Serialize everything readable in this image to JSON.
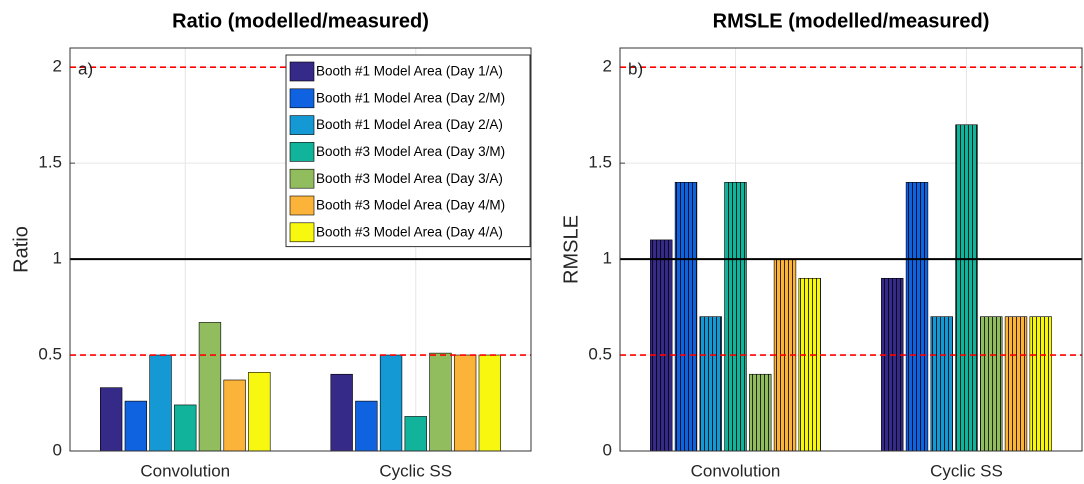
{
  "chart_data": [
    {
      "type": "bar",
      "title": "Ratio (modelled/measured)",
      "y_label": "Ratio",
      "annotation": "a)",
      "categories": [
        "Convolution",
        "Cyclic SS"
      ],
      "series": [
        {
          "name": "Booth #1 Model Area (Day 1/A)",
          "color": "#352a87",
          "values": [
            0.33,
            0.4
          ]
        },
        {
          "name": "Booth #1 Model Area (Day 2/M)",
          "color": "#0f62e0",
          "values": [
            0.26,
            0.26
          ]
        },
        {
          "name": "Booth #1 Model Area (Day 2/A)",
          "color": "#1499d4",
          "values": [
            0.5,
            0.5
          ]
        },
        {
          "name": "Booth #3 Model Area (Day 3/M)",
          "color": "#11b49a",
          "values": [
            0.24,
            0.18
          ]
        },
        {
          "name": "Booth #3 Model Area (Day 3/A)",
          "color": "#92bd5e",
          "values": [
            0.67,
            0.51
          ]
        },
        {
          "name": "Booth #3 Model Area (Day 4/M)",
          "color": "#fcb33a",
          "values": [
            0.37,
            0.5
          ]
        },
        {
          "name": "Booth #3 Model Area (Day 4/A)",
          "color": "#f7f70f",
          "values": [
            0.41,
            0.5
          ]
        }
      ],
      "ylim": [
        0,
        2.1
      ],
      "yticks": [
        0,
        0.5,
        1,
        1.5,
        2
      ],
      "grid": true,
      "legend": "upper right",
      "hlines": [
        {
          "value": 2,
          "color": "#ff0000",
          "style": "dashed"
        },
        {
          "value": 1,
          "color": "#000000",
          "style": "solid"
        },
        {
          "value": 0.5,
          "color": "#ff0000",
          "style": "dashed"
        }
      ]
    },
    {
      "type": "bar",
      "title": "RMSLE (modelled/measured)",
      "y_label": "RMSLE",
      "annotation": "b)",
      "categories": [
        "Convolution",
        "Cyclic SS"
      ],
      "series": [
        {
          "color": "#352a87",
          "values": [
            1.1,
            0.9
          ]
        },
        {
          "color": "#0f62e0",
          "values": [
            1.4,
            1.4
          ]
        },
        {
          "color": "#1499d4",
          "values": [
            0.7,
            0.7
          ]
        },
        {
          "color": "#11b49a",
          "values": [
            1.4,
            1.7
          ]
        },
        {
          "color": "#92bd5e",
          "values": [
            0.4,
            0.7
          ]
        },
        {
          "color": "#fcb33a",
          "values": [
            1.0,
            0.7
          ]
        },
        {
          "color": "#f7f70f",
          "values": [
            0.9,
            0.7
          ]
        }
      ],
      "ylim": [
        0,
        2.1
      ],
      "yticks": [
        0,
        0.5,
        1,
        1.5,
        2
      ],
      "grid": true,
      "hatch": "vertical",
      "hlines": [
        {
          "value": 2,
          "color": "#ff0000",
          "style": "dashed"
        },
        {
          "value": 1,
          "color": "#000000",
          "style": "solid"
        },
        {
          "value": 0.5,
          "color": "#ff0000",
          "style": "dashed"
        }
      ]
    }
  ]
}
